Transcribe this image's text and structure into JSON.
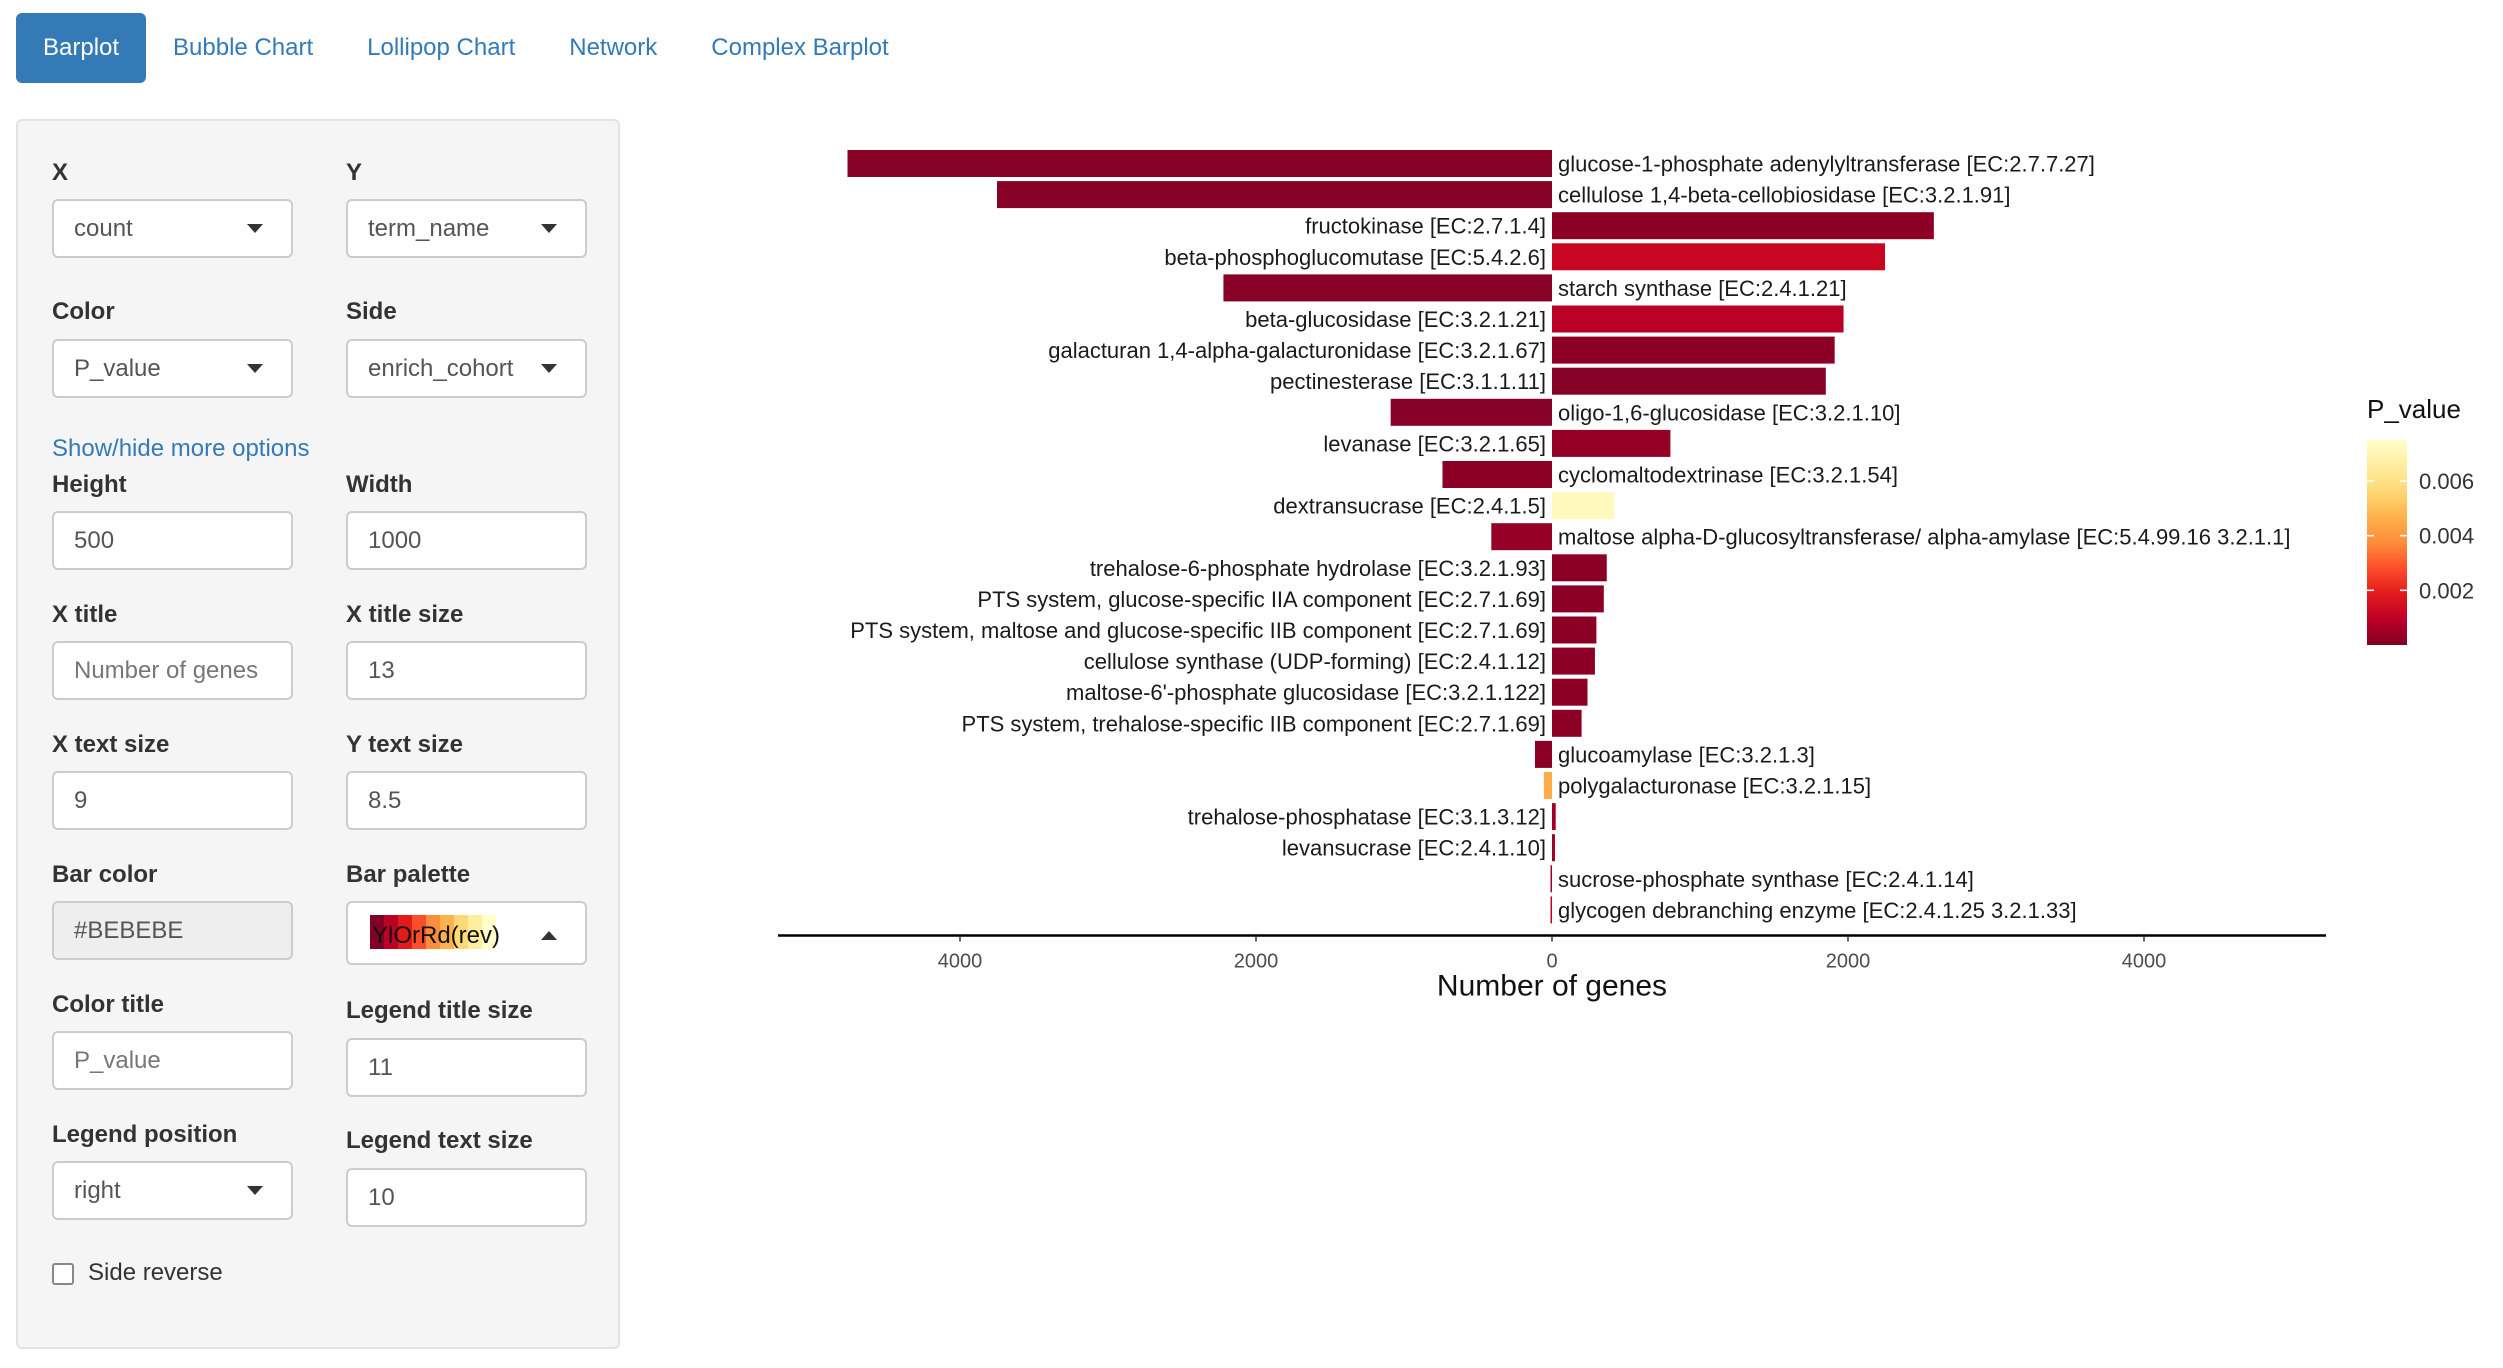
{
  "tabs": [
    "Barplot",
    "Bubble Chart",
    "Lollipop Chart",
    "Network",
    "Complex Barplot"
  ],
  "controls": {
    "x_label": "X",
    "x_value": "count",
    "y_label": "Y",
    "y_value": "term_name",
    "color_label": "Color",
    "color_value": "P_value",
    "side_label": "Side",
    "side_value": "enrich_cohort",
    "more_options_link": "Show/hide more options",
    "height_label": "Height",
    "height_value": "500",
    "width_label": "Width",
    "width_value": "1000",
    "xtitle_label": "X title",
    "xtitle_placeholder": "Number of genes",
    "xtitle_size_label": "X title size",
    "xtitle_size_value": "13",
    "xtext_size_label": "X text size",
    "xtext_size_value": "9",
    "ytext_size_label": "Y text size",
    "ytext_size_value": "8.5",
    "bar_color_label": "Bar color",
    "bar_color_value": "#BEBEBE",
    "bar_palette_label": "Bar palette",
    "bar_palette_value": "YlOrRd(rev)",
    "color_title_label": "Color title",
    "color_title_placeholder": "P_value",
    "legend_title_size_label": "Legend title size",
    "legend_title_size_value": "11",
    "legend_position_label": "Legend position",
    "legend_position_value": "right",
    "legend_text_size_label": "Legend text size",
    "legend_text_size_value": "10",
    "side_reverse_label": "Side reverse"
  },
  "palette_colors": [
    "#800026",
    "#bd0026",
    "#e31a1c",
    "#fc4e2a",
    "#fd8d3c",
    "#feb24c",
    "#fed976",
    "#ffeda0",
    "#ffffcc"
  ],
  "chart_data": {
    "type": "bar",
    "orientation": "horizontal diverging",
    "xlabel": "Number of genes",
    "xlim": [
      -5300,
      5300
    ],
    "x_ticks": [
      -4000,
      -2000,
      0,
      2000,
      4000
    ],
    "x_tick_labels": [
      "4000",
      "2000",
      "0",
      "2000",
      "4000"
    ],
    "legend": {
      "title": "P_value",
      "position": "right",
      "ticks": [
        0.006,
        0.004,
        0.002
      ],
      "tick_labels": [
        "0.006",
        "0.004",
        "0.002"
      ],
      "range": [
        0,
        0.0075
      ]
    },
    "series": [
      {
        "label": "glucose-1-phosphate adenylyltransferase [EC:2.7.7.27]",
        "value": -4760,
        "p": 0.0001
      },
      {
        "label": "cellulose 1,4-beta-cellobiosidase [EC:3.2.1.91]",
        "value": -3750,
        "p": 0.0001
      },
      {
        "label": "fructokinase [EC:2.7.1.4]",
        "value": 2580,
        "p": 0.0002
      },
      {
        "label": "beta-phosphoglucomutase [EC:5.4.2.6]",
        "value": 2250,
        "p": 0.0012
      },
      {
        "label": "starch synthase [EC:2.4.1.21]",
        "value": -2220,
        "p": 0.0001
      },
      {
        "label": "beta-glucosidase [EC:3.2.1.21]",
        "value": 1970,
        "p": 0.0009
      },
      {
        "label": "galacturan 1,4-alpha-galacturonidase [EC:3.2.1.67]",
        "value": 1910,
        "p": 0.0002
      },
      {
        "label": "pectinesterase [EC:3.1.1.11]",
        "value": 1850,
        "p": 0.0001
      },
      {
        "label": "oligo-1,6-glucosidase [EC:3.2.1.10]",
        "value": -1090,
        "p": 0.0001
      },
      {
        "label": "levanase [EC:3.2.1.65]",
        "value": 800,
        "p": 0.0003
      },
      {
        "label": "cyclomaltodextrinase [EC:3.2.1.54]",
        "value": -740,
        "p": 0.0002
      },
      {
        "label": "dextransucrase [EC:2.4.1.5]",
        "value": 420,
        "p": 0.0072
      },
      {
        "label": "maltose alpha-D-glucosyltransferase/ alpha-amylase [EC:5.4.99.16 3.2.1.1]",
        "value": -410,
        "p": 0.0003
      },
      {
        "label": "trehalose-6-phosphate hydrolase [EC:3.2.1.93]",
        "value": 370,
        "p": 0.0002
      },
      {
        "label": "PTS system, glucose-specific IIA component [EC:2.7.1.69]",
        "value": 350,
        "p": 0.0002
      },
      {
        "label": "PTS system, maltose and glucose-specific IIB component [EC:2.7.1.69]",
        "value": 300,
        "p": 0.0002
      },
      {
        "label": "cellulose synthase (UDP-forming) [EC:2.4.1.12]",
        "value": 290,
        "p": 0.0002
      },
      {
        "label": "maltose-6'-phosphate glucosidase [EC:3.2.1.122]",
        "value": 240,
        "p": 0.0002
      },
      {
        "label": "PTS system, trehalose-specific IIB component [EC:2.7.1.69]",
        "value": 200,
        "p": 0.0002
      },
      {
        "label": "glucoamylase [EC:3.2.1.3]",
        "value": -115,
        "p": 0.0002
      },
      {
        "label": "polygalacturonase [EC:3.2.1.15]",
        "value": -55,
        "p": 0.0045
      },
      {
        "label": "trehalose-phosphatase [EC:3.1.3.12]",
        "value": 25,
        "p": 0.0005
      },
      {
        "label": "levansucrase [EC:2.4.1.10]",
        "value": 20,
        "p": 0.0005
      },
      {
        "label": "sucrose-phosphate synthase [EC:2.4.1.14]",
        "value": -8,
        "p": 0.0005
      },
      {
        "label": "glycogen debranching enzyme [EC:2.4.1.25 3.2.1.33]",
        "value": -6,
        "p": 0.001
      }
    ]
  }
}
